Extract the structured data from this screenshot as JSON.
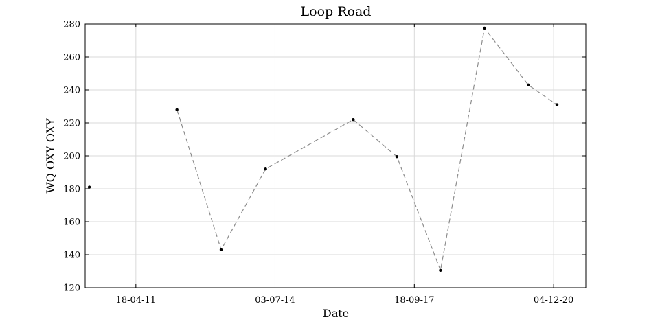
{
  "chart_data": {
    "type": "line",
    "title": "Loop Road",
    "xlabel": "Date",
    "ylabel": "WQ OXY OXY",
    "ylim": [
      120,
      280
    ],
    "yticks": [
      120,
      140,
      160,
      180,
      200,
      220,
      240,
      260,
      280
    ],
    "xlim": [
      "2010-02-15",
      "2021-09-01"
    ],
    "xticks": [
      {
        "date": "2011-04-18",
        "label": "18-04-11"
      },
      {
        "date": "2014-07-03",
        "label": "03-07-14"
      },
      {
        "date": "2017-09-18",
        "label": "18-09-17"
      },
      {
        "date": "2020-12-04",
        "label": "04-12-20"
      }
    ],
    "grid": true,
    "series": [
      {
        "color": "#8c8c8c",
        "line_style": "dashed",
        "marker": "dot",
        "x": [
          "2010-03-22",
          "2012-03-29",
          "2013-04-05",
          "2014-04-14",
          "2016-04-21",
          "2017-04-24",
          "2018-04-26",
          "2019-05-02",
          "2020-05-05",
          "2021-01-01"
        ],
        "y": [
          181,
          228,
          143,
          192,
          222,
          199.5,
          130.5,
          277.5,
          243,
          231
        ],
        "segments": [
          [
            1,
            9
          ]
        ]
      }
    ]
  }
}
